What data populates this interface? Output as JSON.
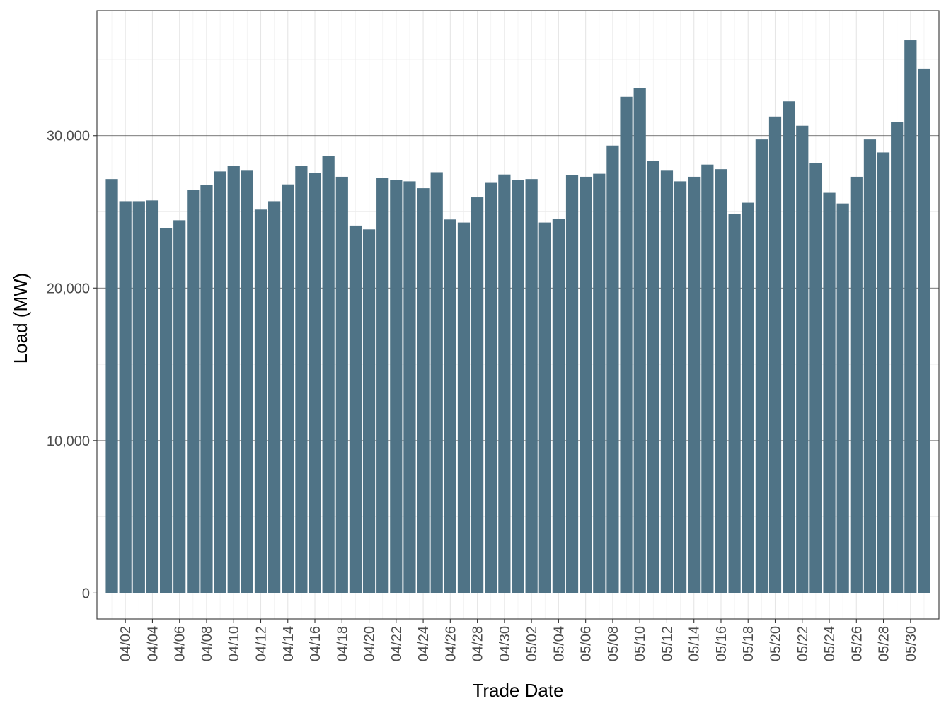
{
  "chart_data": {
    "type": "bar",
    "title": "",
    "xlabel": "Trade Date",
    "ylabel": "Load (MW)",
    "ylim": [
      -1700,
      38200
    ],
    "yticks": [
      0,
      10000,
      20000,
      30000
    ],
    "ytick_labels": [
      "0",
      "10,000",
      "20,000",
      "30,000"
    ],
    "grid": true,
    "legend": "none",
    "bar_color": "#4f7386",
    "categories": [
      "04/01",
      "04/02",
      "04/03",
      "04/04",
      "04/05",
      "04/06",
      "04/07",
      "04/08",
      "04/09",
      "04/10",
      "04/11",
      "04/12",
      "04/13",
      "04/14",
      "04/15",
      "04/16",
      "04/17",
      "04/18",
      "04/19",
      "04/20",
      "04/21",
      "04/22",
      "04/23",
      "04/24",
      "04/25",
      "04/26",
      "04/27",
      "04/28",
      "04/29",
      "04/30",
      "05/01",
      "05/02",
      "05/03",
      "05/04",
      "05/05",
      "05/06",
      "05/07",
      "05/08",
      "05/09",
      "05/10",
      "05/11",
      "05/12",
      "05/13",
      "05/14",
      "05/15",
      "05/16",
      "05/17",
      "05/18",
      "05/19",
      "05/20",
      "05/21",
      "05/22",
      "05/23",
      "05/24",
      "05/25",
      "05/26",
      "05/27",
      "05/28",
      "05/29",
      "05/30",
      "05/31"
    ],
    "values": [
      27150,
      25700,
      25700,
      25750,
      23950,
      24450,
      26450,
      26750,
      27650,
      28000,
      27700,
      25150,
      25700,
      26800,
      28000,
      27550,
      28650,
      27300,
      24100,
      23850,
      27250,
      27100,
      27000,
      26550,
      27600,
      24500,
      24300,
      25950,
      26900,
      27450,
      27100,
      27150,
      24300,
      24550,
      27400,
      27300,
      27500,
      29350,
      32550,
      33100,
      28350,
      27700,
      27000,
      27300,
      28100,
      27800,
      24850,
      25600,
      29750,
      31250,
      32250,
      30650,
      28200,
      26250,
      25550,
      27300,
      29750,
      28900,
      30900,
      36250,
      34400
    ],
    "xtick_labels": [
      "04/02",
      "04/04",
      "04/06",
      "04/08",
      "04/10",
      "04/12",
      "04/14",
      "04/16",
      "04/18",
      "04/20",
      "04/22",
      "04/24",
      "04/26",
      "04/28",
      "04/30",
      "05/02",
      "05/04",
      "05/06",
      "05/08",
      "05/10",
      "05/12",
      "05/14",
      "05/16",
      "05/18",
      "05/20",
      "05/22",
      "05/24",
      "05/26",
      "05/28",
      "05/30"
    ]
  }
}
